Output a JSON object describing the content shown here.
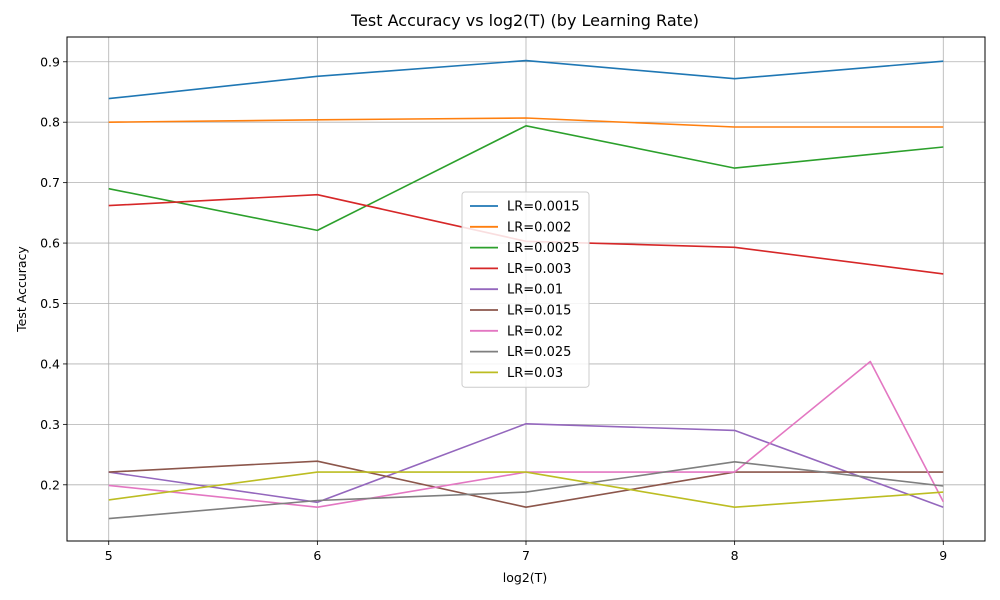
{
  "chart_data": {
    "type": "line",
    "title": "Test Accuracy vs log2(T) (by Learning Rate)",
    "xlabel": "log2(T)",
    "ylabel": "Test Accuracy",
    "xlim": [
      4.8,
      9.2
    ],
    "ylim": [
      0.107,
      0.941
    ],
    "xticks": [
      5,
      6,
      7,
      8,
      9
    ],
    "yticks": [
      0.2,
      0.3,
      0.4,
      0.5,
      0.6,
      0.7,
      0.8,
      0.9
    ],
    "grid": true,
    "legend_position": "center",
    "series": [
      {
        "name": "LR=0.0015",
        "color": "#1f77b4",
        "x": [
          5,
          6,
          7,
          8,
          9
        ],
        "y": [
          0.839,
          0.876,
          0.902,
          0.872,
          0.901
        ]
      },
      {
        "name": "LR=0.002",
        "color": "#ff7f0e",
        "x": [
          5,
          6,
          7,
          8,
          9
        ],
        "y": [
          0.8,
          0.804,
          0.807,
          0.792,
          0.792
        ]
      },
      {
        "name": "LR=0.0025",
        "color": "#2ca02c",
        "x": [
          5,
          6,
          7,
          8,
          9
        ],
        "y": [
          0.69,
          0.621,
          0.794,
          0.724,
          0.759
        ]
      },
      {
        "name": "LR=0.003",
        "color": "#d62728",
        "x": [
          5,
          6,
          7,
          8,
          9
        ],
        "y": [
          0.662,
          0.68,
          0.603,
          0.593,
          0.549
        ]
      },
      {
        "name": "LR=0.01",
        "color": "#9467bd",
        "x": [
          5,
          6,
          7,
          8,
          9
        ],
        "y": [
          0.221,
          0.171,
          0.301,
          0.29,
          0.163
        ]
      },
      {
        "name": "LR=0.015",
        "color": "#8c564b",
        "x": [
          5,
          6,
          7,
          8,
          9
        ],
        "y": [
          0.221,
          0.239,
          0.163,
          0.221,
          0.221
        ]
      },
      {
        "name": "LR=0.02",
        "color": "#e377c2",
        "x": [
          5,
          6,
          7,
          8,
          8.65,
          9
        ],
        "y": [
          0.199,
          0.163,
          0.221,
          0.221,
          0.404,
          0.172
        ]
      },
      {
        "name": "LR=0.025",
        "color": "#7f7f7f",
        "x": [
          5,
          6,
          7,
          8,
          9
        ],
        "y": [
          0.144,
          0.174,
          0.188,
          0.238,
          0.198
        ]
      },
      {
        "name": "LR=0.03",
        "color": "#bcbd22",
        "x": [
          5,
          6,
          7,
          8,
          9
        ],
        "y": [
          0.175,
          0.221,
          0.221,
          0.163,
          0.188
        ]
      }
    ]
  }
}
